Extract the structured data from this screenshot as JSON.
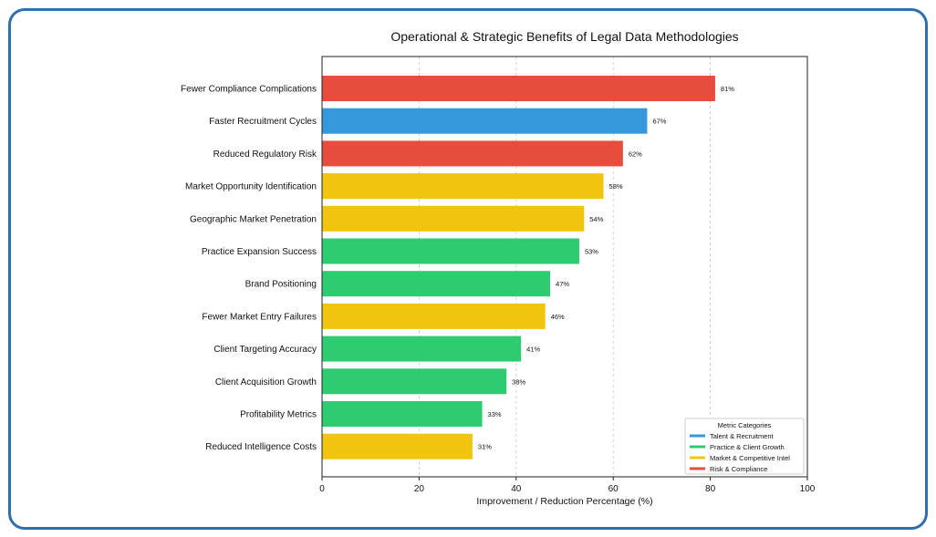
{
  "chart_data": {
    "type": "bar",
    "orientation": "horizontal",
    "title": "Operational & Strategic Benefits of Legal Data Methodologies",
    "xlabel": "Improvement / Reduction Percentage (%)",
    "ylabel": "",
    "xlim": [
      0,
      100
    ],
    "xticks": [
      0,
      20,
      40,
      60,
      80,
      100
    ],
    "grid": "x-dashed",
    "value_suffix": "%",
    "categories": [
      "Fewer Compliance Complications",
      "Faster Recruitment Cycles",
      "Reduced Regulatory Risk",
      "Market Opportunity Identification",
      "Geographic Market Penetration",
      "Practice Expansion Success",
      "Brand Positioning",
      "Fewer Market Entry Failures",
      "Client Targeting Accuracy",
      "Client Acquisition Growth",
      "Profitability Metrics",
      "Reduced Intelligence Costs"
    ],
    "values": [
      81,
      67,
      62,
      58,
      54,
      53,
      47,
      46,
      41,
      38,
      33,
      31
    ],
    "bar_category": [
      "Risk & Compliance",
      "Talent & Recruitment",
      "Risk & Compliance",
      "Market & Competitive Intel",
      "Market & Competitive Intel",
      "Practice & Client Growth",
      "Practice & Client Growth",
      "Market & Competitive Intel",
      "Practice & Client Growth",
      "Practice & Client Growth",
      "Practice & Client Growth",
      "Market & Competitive Intel"
    ],
    "legend": {
      "title": "Metric Categories",
      "placement": "bottom-right",
      "entries": [
        {
          "label": "Talent & Recruitment",
          "color": "#3498db"
        },
        {
          "label": "Practice & Client Growth",
          "color": "#2ecc71"
        },
        {
          "label": "Market & Competitive Intel",
          "color": "#f1c40f"
        },
        {
          "label": "Risk & Compliance",
          "color": "#e74c3c"
        }
      ]
    },
    "frame_color": "#2f6fae"
  }
}
